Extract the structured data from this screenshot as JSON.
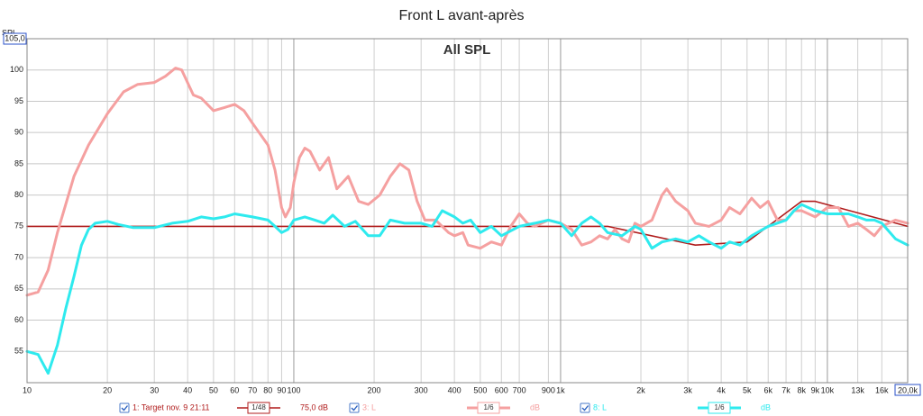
{
  "chart_data": {
    "type": "line",
    "title": "Front L avant-après",
    "subtitle": "All SPL",
    "ylabel": "SPL",
    "xscale": "log",
    "grid": true,
    "xlim": [
      10,
      20000
    ],
    "ylim": [
      50,
      105
    ],
    "xticks": [
      10,
      20,
      30,
      40,
      50,
      60,
      70,
      80,
      90,
      100,
      200,
      300,
      400,
      500,
      600,
      700,
      900,
      {
        "value": 1000,
        "label": "1k"
      },
      {
        "value": 2000,
        "label": "2k"
      },
      {
        "value": 3000,
        "label": "3k"
      },
      {
        "value": 4000,
        "label": "4k"
      },
      {
        "value": 5000,
        "label": "5k"
      },
      {
        "value": 6000,
        "label": "6k"
      },
      {
        "value": 7000,
        "label": "7k"
      },
      {
        "value": 8000,
        "label": "8k"
      },
      {
        "value": 9000,
        "label": "9k"
      },
      {
        "value": 10000,
        "label": "10k"
      },
      {
        "value": 13000,
        "label": "13k"
      },
      {
        "value": 16000,
        "label": "16k"
      },
      {
        "value": 20000,
        "label": "20,0k"
      }
    ],
    "yticks": [
      55,
      60,
      65,
      70,
      75,
      80,
      85,
      90,
      95,
      100,
      {
        "value": 105,
        "label": "105,0"
      }
    ],
    "series": [
      {
        "name": "1: Target nov. 9 21:11",
        "smoothing": "1/48",
        "level": "75,0 dB",
        "color": "#b01c1c",
        "x": [
          10,
          1000,
          1500,
          3200,
          5000,
          8000,
          9000,
          20000
        ],
        "values": [
          75,
          75,
          75,
          72,
          72.5,
          79,
          79,
          75
        ]
      },
      {
        "name": "3: L",
        "smoothing": "1/6",
        "level": "dB",
        "color": "#f5a0a0",
        "x": [
          10,
          11,
          12,
          13,
          15,
          17,
          20,
          23,
          26,
          30,
          33,
          36,
          38,
          42,
          45,
          50,
          55,
          60,
          65,
          70,
          80,
          85,
          90,
          93,
          97,
          100,
          105,
          110,
          115,
          125,
          135,
          145,
          160,
          175,
          190,
          210,
          230,
          250,
          270,
          290,
          310,
          340,
          360,
          380,
          400,
          430,
          450,
          500,
          550,
          600,
          650,
          700,
          750,
          800,
          900,
          1000,
          1100,
          1200,
          1300,
          1400,
          1500,
          1600,
          1700,
          1800,
          1900,
          2000,
          2200,
          2400,
          2500,
          2700,
          3000,
          3200,
          3600,
          4000,
          4300,
          4700,
          5200,
          5600,
          6000,
          6500,
          7000,
          7500,
          8000,
          9000,
          10000,
          11000,
          12000,
          13000,
          14000,
          15000,
          16000,
          18000,
          20000
        ],
        "values": [
          64,
          64.5,
          68,
          74,
          83,
          88,
          93,
          96.5,
          97.7,
          98,
          99,
          100.3,
          100,
          96,
          95.5,
          93.5,
          94,
          94.5,
          93.5,
          91.5,
          88,
          84,
          78,
          76.5,
          78,
          82,
          86,
          87.5,
          87,
          84,
          86,
          81,
          83,
          79,
          78.5,
          80,
          83,
          85,
          84,
          79,
          76,
          76,
          75,
          74,
          73.5,
          74,
          72,
          71.5,
          72.5,
          72,
          75,
          77,
          75.5,
          75,
          76,
          75.5,
          74.5,
          72,
          72.5,
          73.5,
          73,
          74.5,
          73,
          72.5,
          75.5,
          75,
          76,
          80,
          81,
          79,
          77.5,
          75.5,
          75,
          76,
          78,
          77,
          79.5,
          78,
          79,
          76,
          76,
          77.5,
          77.5,
          76.5,
          78,
          78,
          75,
          75.5,
          74.5,
          73.5,
          75,
          76,
          75.5
        ]
      },
      {
        "name": "8: L",
        "smoothing": "1/6",
        "level": "dB",
        "color": "#2eeaee",
        "x": [
          10,
          11,
          12,
          13,
          14,
          15,
          16,
          17,
          18,
          20,
          22,
          25,
          30,
          35,
          40,
          45,
          50,
          55,
          60,
          70,
          80,
          85,
          90,
          95,
          100,
          110,
          120,
          130,
          140,
          155,
          170,
          190,
          210,
          230,
          260,
          300,
          330,
          360,
          400,
          430,
          460,
          500,
          550,
          600,
          700,
          800,
          900,
          1000,
          1100,
          1200,
          1300,
          1400,
          1500,
          1700,
          1900,
          2000,
          2200,
          2400,
          2700,
          3000,
          3300,
          3600,
          4000,
          4300,
          4700,
          5200,
          6000,
          7000,
          7500,
          8000,
          9000,
          10000,
          11000,
          12000,
          13000,
          14000,
          15000,
          16000,
          18000,
          20000
        ],
        "values": [
          55,
          54.5,
          51.5,
          56,
          62,
          67,
          72,
          74.5,
          75.5,
          75.8,
          75.3,
          74.8,
          74.8,
          75.5,
          75.8,
          76.5,
          76.2,
          76.5,
          77,
          76.5,
          76,
          75,
          74,
          74.5,
          76,
          76.5,
          76,
          75.5,
          76.8,
          75,
          75.8,
          73.5,
          73.5,
          76,
          75.5,
          75.5,
          75,
          77.5,
          76.5,
          75.5,
          76,
          74,
          75,
          73.5,
          75,
          75.5,
          76,
          75.5,
          73.5,
          75.5,
          76.5,
          75.5,
          74,
          73.5,
          75,
          74.5,
          71.5,
          72.5,
          73,
          72.5,
          73.5,
          72.5,
          71.5,
          72.5,
          72,
          73.5,
          75,
          76,
          77.5,
          78.5,
          77.5,
          77,
          77,
          77,
          76.5,
          76,
          76,
          75.5,
          73,
          72
        ]
      }
    ]
  }
}
